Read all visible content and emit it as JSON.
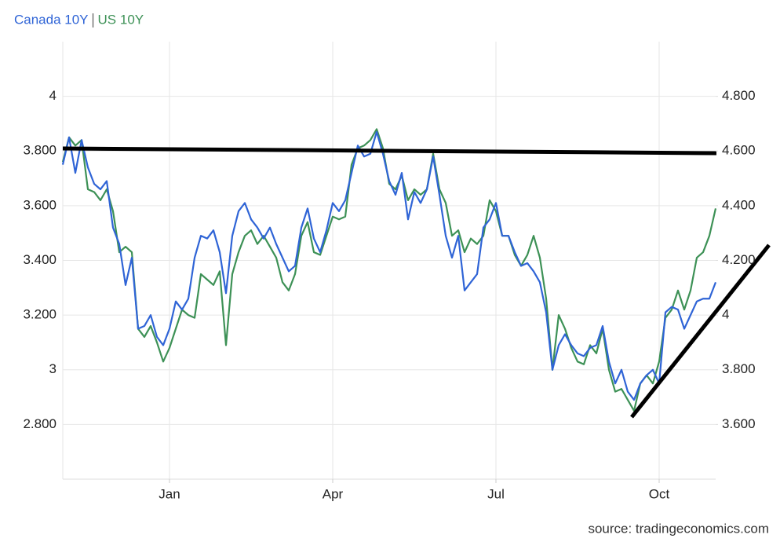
{
  "chart_data": {
    "type": "line",
    "source": "source: tradingeconomics.com",
    "categories": [
      null,
      null,
      null,
      null,
      null,
      null,
      null,
      null,
      null,
      null,
      null,
      null,
      null,
      null,
      null,
      null,
      null,
      "Jan",
      null,
      null,
      null,
      null,
      null,
      null,
      null,
      null,
      null,
      null,
      null,
      null,
      null,
      null,
      null,
      null,
      null,
      null,
      null,
      null,
      null,
      null,
      null,
      null,
      null,
      "Apr",
      null,
      null,
      null,
      null,
      null,
      null,
      null,
      null,
      null,
      null,
      null,
      null,
      null,
      null,
      null,
      null,
      null,
      null,
      null,
      null,
      null,
      null,
      null,
      null,
      null,
      "Jul",
      null,
      null,
      null,
      null,
      null,
      null,
      null,
      null,
      null,
      null,
      null,
      null,
      null,
      null,
      null,
      null,
      null,
      null,
      null,
      null,
      null,
      null,
      null,
      null,
      null,
      "Oct",
      null,
      null,
      null,
      null,
      null,
      null,
      null,
      null,
      null
    ],
    "series": [
      {
        "name": "Canada 10Y",
        "color": "#2f64d6",
        "axis": "y",
        "values": [
          3.75,
          3.85,
          3.72,
          3.84,
          3.74,
          3.68,
          3.66,
          3.69,
          3.52,
          3.46,
          3.31,
          3.41,
          3.15,
          3.16,
          3.2,
          3.12,
          3.09,
          3.15,
          3.25,
          3.22,
          3.26,
          3.41,
          3.49,
          3.48,
          3.51,
          3.43,
          3.28,
          3.49,
          3.58,
          3.61,
          3.55,
          3.52,
          3.48,
          3.52,
          3.46,
          3.41,
          3.36,
          3.38,
          3.52,
          3.59,
          3.48,
          3.43,
          3.51,
          3.61,
          3.58,
          3.62,
          3.72,
          3.82,
          3.78,
          3.79,
          3.87,
          3.79,
          3.69,
          3.64,
          3.72,
          3.55,
          3.65,
          3.61,
          3.66,
          3.78,
          3.64,
          3.49,
          3.41,
          3.49,
          3.29,
          3.32,
          3.35,
          3.52,
          3.55,
          3.61,
          3.49,
          3.49,
          3.43,
          3.38,
          3.39,
          3.36,
          3.32,
          3.21,
          3.0,
          3.09,
          3.13,
          3.09,
          3.06,
          3.05,
          3.08,
          3.09,
          3.16,
          3.03,
          2.95,
          3.0,
          2.92,
          2.89,
          2.95,
          2.98,
          3.0,
          2.95,
          3.21,
          3.23,
          3.22,
          3.15,
          3.2,
          3.25,
          3.26,
          3.26,
          3.32
        ]
      },
      {
        "name": "US 10Y",
        "color": "#3d9156",
        "axis": "y2",
        "values": [
          4.56,
          4.65,
          4.62,
          4.64,
          4.46,
          4.45,
          4.42,
          4.46,
          4.38,
          4.23,
          4.25,
          4.23,
          3.95,
          3.92,
          3.96,
          3.9,
          3.83,
          3.88,
          3.95,
          4.02,
          4.0,
          3.99,
          4.15,
          4.13,
          4.11,
          4.16,
          3.89,
          4.15,
          4.23,
          4.29,
          4.31,
          4.26,
          4.29,
          4.25,
          4.21,
          4.12,
          4.09,
          4.15,
          4.29,
          4.34,
          4.23,
          4.22,
          4.29,
          4.36,
          4.35,
          4.36,
          4.55,
          4.61,
          4.62,
          4.64,
          4.68,
          4.61,
          4.48,
          4.46,
          4.51,
          4.42,
          4.46,
          4.44,
          4.46,
          4.59,
          4.46,
          4.41,
          4.29,
          4.31,
          4.23,
          4.28,
          4.26,
          4.29,
          4.42,
          4.38,
          4.29,
          4.29,
          4.22,
          4.18,
          4.22,
          4.29,
          4.21,
          4.06,
          3.8,
          4.0,
          3.95,
          3.88,
          3.83,
          3.82,
          3.89,
          3.86,
          3.95,
          3.8,
          3.72,
          3.73,
          3.69,
          3.65,
          3.75,
          3.78,
          3.75,
          3.83,
          3.99,
          4.02,
          4.09,
          4.02,
          4.09,
          4.21,
          4.23,
          4.29,
          4.39
        ]
      }
    ],
    "ylim": [
      2.6,
      4.2
    ],
    "yticks": [
      {
        "value": 2.8,
        "label": "2.800"
      },
      3,
      {
        "value": 3.2,
        "label": "3.200"
      },
      {
        "value": 3.4,
        "label": "3.400"
      },
      {
        "value": 3.6,
        "label": "3.600"
      },
      {
        "value": 3.8,
        "label": "3.800"
      },
      4
    ],
    "y2lim": [
      3.4,
      5.0
    ],
    "y2ticks": [
      {
        "value": 3.6,
        "label": "3.600"
      },
      {
        "value": 3.8,
        "label": "3.800"
      },
      4,
      {
        "value": 4.2,
        "label": "4.200"
      },
      {
        "value": 4.4,
        "label": "4.400"
      },
      {
        "value": 4.6,
        "label": "4.600"
      },
      {
        "value": 4.8,
        "label": "4.800"
      }
    ],
    "grid": true
  }
}
